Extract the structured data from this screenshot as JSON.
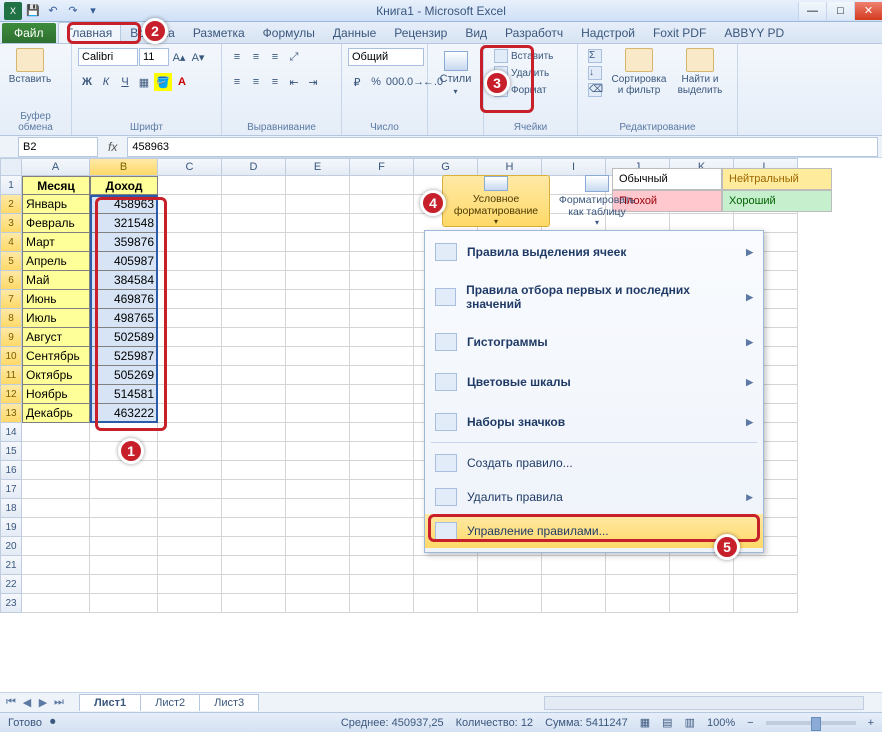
{
  "window": {
    "title": "Книга1  -  Microsoft Excel"
  },
  "qat": {
    "save": "💾",
    "undo": "↶",
    "redo": "↷",
    "more": "▾"
  },
  "winbtns": {
    "min": "—",
    "max": "□",
    "close": "✕"
  },
  "tabs": {
    "file": "Файл",
    "items": [
      "Главная",
      "Вставка",
      "Разметка",
      "Формулы",
      "Данные",
      "Рецензир",
      "Вид",
      "Разработч",
      "Надстрой",
      "Foxit PDF",
      "ABBYY PD"
    ],
    "activeIndex": 0
  },
  "ribbon": {
    "clipboard": {
      "paste": "Вставить",
      "label": "Буфер обмена"
    },
    "font": {
      "name": "Calibri",
      "size": "11",
      "label": "Шрифт"
    },
    "alignment": {
      "label": "Выравнивание"
    },
    "number": {
      "format": "Общий",
      "label": "Число"
    },
    "styles": {
      "btn": "Стили",
      "cf": "Условное форматирование",
      "fmtTable": "Форматировать как таблицу",
      "label": "Стили"
    },
    "cells": {
      "insert": "Вставить",
      "delete": "Удалить",
      "format": "Формат",
      "label": "Ячейки"
    },
    "editing": {
      "sort": "Сортировка и фильтр",
      "find": "Найти и выделить",
      "label": "Редактирование"
    }
  },
  "styleSwatches": [
    {
      "label": "Обычный",
      "bg": "#ffffff",
      "fg": "#000000"
    },
    {
      "label": "Нейтральный",
      "bg": "#ffeb9c",
      "fg": "#9c6500"
    },
    {
      "label": "Плохой",
      "bg": "#ffc7ce",
      "fg": "#9c0006"
    },
    {
      "label": "Хороший",
      "bg": "#c6efce",
      "fg": "#006100"
    }
  ],
  "formulabar": {
    "namebox": "B2",
    "fx": "fx",
    "value": "458963"
  },
  "columns": [
    "A",
    "B",
    "C",
    "D",
    "E",
    "F",
    "G",
    "H",
    "I",
    "J",
    "K",
    "L"
  ],
  "sheet": {
    "headers": {
      "A": "Месяц",
      "B": "Доход"
    },
    "rows": [
      {
        "a": "Январь",
        "b": "458963"
      },
      {
        "a": "Февраль",
        "b": "321548"
      },
      {
        "a": "Март",
        "b": "359876"
      },
      {
        "a": "Апрель",
        "b": "405987"
      },
      {
        "a": "Май",
        "b": "384584"
      },
      {
        "a": "Июнь",
        "b": "469876"
      },
      {
        "a": "Июль",
        "b": "498765"
      },
      {
        "a": "Август",
        "b": "502589"
      },
      {
        "a": "Сентябрь",
        "b": "525987"
      },
      {
        "a": "Октябрь",
        "b": "505269"
      },
      {
        "a": "Ноябрь",
        "b": "514581"
      },
      {
        "a": "Декабрь",
        "b": "463222"
      }
    ],
    "blankRows": 10
  },
  "cfMenu": {
    "items": [
      {
        "label": "Правила выделения ячеек",
        "bold": true,
        "sub": true
      },
      {
        "label": "Правила отбора первых и последних значений",
        "bold": true,
        "sub": true
      },
      {
        "label": "Гистограммы",
        "bold": true,
        "sub": true
      },
      {
        "label": "Цветовые шкалы",
        "bold": true,
        "sub": true
      },
      {
        "label": "Наборы значков",
        "bold": true,
        "sub": true
      }
    ],
    "footer": [
      {
        "label": "Создать правило..."
      },
      {
        "label": "Удалить правила",
        "sub": true
      },
      {
        "label": "Управление правилами..."
      }
    ]
  },
  "sheetTabs": {
    "tabs": [
      "Лист1",
      "Лист2",
      "Лист3"
    ],
    "active": 0
  },
  "statusbar": {
    "ready": "Готово",
    "avg_label": "Среднее:",
    "avg": "450937,25",
    "count_label": "Количество:",
    "count": "12",
    "sum_label": "Сумма:",
    "sum": "5411247",
    "zoom": "100%"
  },
  "callouts": {
    "c1": "1",
    "c2": "2",
    "c3": "3",
    "c4": "4",
    "c5": "5"
  }
}
